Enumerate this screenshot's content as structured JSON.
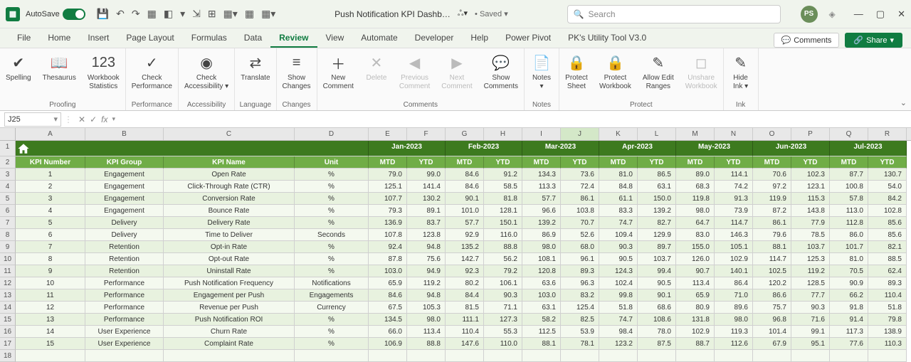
{
  "titlebar": {
    "autosave_label": "AutoSave",
    "doc_title": "Push Notification KPI Dashb…",
    "saved_label": "Saved",
    "search_placeholder": "Search",
    "avatar_initials": "PS"
  },
  "tabs": {
    "items": [
      "File",
      "Home",
      "Insert",
      "Page Layout",
      "Formulas",
      "Data",
      "Review",
      "View",
      "Automate",
      "Developer",
      "Help",
      "Power Pivot",
      "PK's Utility Tool V3.0"
    ],
    "active_index": 6,
    "comments_label": "Comments",
    "share_label": "Share"
  },
  "ribbon": {
    "groups": [
      {
        "name": "Proofing",
        "items": [
          {
            "icon": "✔",
            "label": "Spelling"
          },
          {
            "icon": "📖",
            "label": "Thesaurus"
          },
          {
            "icon": "123",
            "label": "Workbook\nStatistics"
          }
        ]
      },
      {
        "name": "Performance",
        "items": [
          {
            "icon": "✓",
            "label": "Check\nPerformance"
          }
        ]
      },
      {
        "name": "Accessibility",
        "items": [
          {
            "icon": "◉",
            "label": "Check\nAccessibility ▾"
          }
        ]
      },
      {
        "name": "Language",
        "items": [
          {
            "icon": "⇄",
            "label": "Translate"
          }
        ]
      },
      {
        "name": "Changes",
        "items": [
          {
            "icon": "≡",
            "label": "Show\nChanges"
          }
        ]
      },
      {
        "name": "Comments",
        "items": [
          {
            "icon": "＋",
            "label": "New\nComment"
          },
          {
            "icon": "✕",
            "label": "Delete",
            "disabled": true
          },
          {
            "icon": "◀",
            "label": "Previous\nComment",
            "disabled": true
          },
          {
            "icon": "▶",
            "label": "Next\nComment",
            "disabled": true
          },
          {
            "icon": "💬",
            "label": "Show\nComments"
          }
        ]
      },
      {
        "name": "Notes",
        "items": [
          {
            "icon": "📄",
            "label": "Notes\n▾"
          }
        ]
      },
      {
        "name": "Protect",
        "items": [
          {
            "icon": "🔒",
            "label": "Protect\nSheet"
          },
          {
            "icon": "🔒",
            "label": "Protect\nWorkbook"
          },
          {
            "icon": "✎",
            "label": "Allow Edit\nRanges"
          },
          {
            "icon": "◻",
            "label": "Unshare\nWorkbook",
            "disabled": true
          }
        ]
      },
      {
        "name": "Ink",
        "items": [
          {
            "icon": "✎",
            "label": "Hide\nInk ▾"
          }
        ]
      }
    ]
  },
  "formula_bar": {
    "namebox": "J25",
    "formula": ""
  },
  "columns": [
    "A",
    "B",
    "C",
    "D",
    "E",
    "F",
    "G",
    "H",
    "I",
    "J",
    "K",
    "L",
    "M",
    "N",
    "O",
    "P",
    "Q",
    "R"
  ],
  "active_col_index": 9,
  "months": [
    "Jan-2023",
    "Feb-2023",
    "Mar-2023",
    "Apr-2023",
    "May-2023",
    "Jun-2023",
    "Jul-2023"
  ],
  "header_row": {
    "kpi_number": "KPI Number",
    "kpi_group": "KPI Group",
    "kpi_name": "KPI Name",
    "unit": "Unit",
    "mtd": "MTD",
    "ytd": "YTD"
  },
  "kpi_data": [
    {
      "num": 1,
      "group": "Engagement",
      "name": "Open Rate",
      "unit": "%",
      "vals": [
        79.0,
        99.0,
        84.6,
        91.2,
        134.3,
        73.6,
        81.0,
        86.5,
        89.0,
        114.1,
        70.6,
        102.3,
        87.7,
        130.7
      ]
    },
    {
      "num": 2,
      "group": "Engagement",
      "name": "Click-Through Rate (CTR)",
      "unit": "%",
      "vals": [
        125.1,
        141.4,
        84.6,
        58.5,
        113.3,
        72.4,
        84.8,
        63.1,
        68.3,
        74.2,
        97.2,
        123.1,
        100.8,
        54.0
      ]
    },
    {
      "num": 3,
      "group": "Engagement",
      "name": "Conversion Rate",
      "unit": "%",
      "vals": [
        107.7,
        130.2,
        90.1,
        81.8,
        57.7,
        86.1,
        61.1,
        150.0,
        119.8,
        91.3,
        119.9,
        115.3,
        57.8,
        84.2
      ]
    },
    {
      "num": 4,
      "group": "Engagement",
      "name": "Bounce Rate",
      "unit": "%",
      "vals": [
        79.3,
        89.1,
        101.0,
        128.1,
        96.6,
        103.8,
        83.3,
        139.2,
        98.0,
        73.9,
        87.2,
        143.8,
        113.0,
        102.8
      ]
    },
    {
      "num": 5,
      "group": "Delivery",
      "name": "Delivery Rate",
      "unit": "%",
      "vals": [
        136.9,
        83.7,
        57.7,
        150.1,
        139.2,
        70.7,
        74.7,
        82.7,
        64.7,
        114.7,
        86.1,
        77.9,
        112.8,
        85.6
      ]
    },
    {
      "num": 6,
      "group": "Delivery",
      "name": "Time to Deliver",
      "unit": "Seconds",
      "vals": [
        107.8,
        123.8,
        92.9,
        116.0,
        86.9,
        52.6,
        109.4,
        129.9,
        83.0,
        146.3,
        79.6,
        78.5,
        86.0,
        85.6
      ]
    },
    {
      "num": 7,
      "group": "Retention",
      "name": "Opt-in Rate",
      "unit": "%",
      "vals": [
        92.4,
        94.8,
        135.2,
        88.8,
        98.0,
        68.0,
        90.3,
        89.7,
        155.0,
        105.1,
        88.1,
        103.7,
        101.7,
        82.1
      ]
    },
    {
      "num": 8,
      "group": "Retention",
      "name": "Opt-out Rate",
      "unit": "%",
      "vals": [
        87.8,
        75.6,
        142.7,
        56.2,
        108.1,
        96.1,
        90.5,
        103.7,
        126.0,
        102.9,
        114.7,
        125.3,
        81.0,
        88.5
      ]
    },
    {
      "num": 9,
      "group": "Retention",
      "name": "Uninstall Rate",
      "unit": "%",
      "vals": [
        103.0,
        94.9,
        92.3,
        79.2,
        120.8,
        89.3,
        124.3,
        99.4,
        90.7,
        140.1,
        102.5,
        119.2,
        70.5,
        62.4
      ]
    },
    {
      "num": 10,
      "group": "Performance",
      "name": "Push Notification Frequency",
      "unit": "Notifications",
      "vals": [
        65.9,
        119.2,
        80.2,
        106.1,
        63.6,
        96.3,
        102.4,
        90.5,
        113.4,
        86.4,
        120.2,
        128.5,
        90.9,
        89.3
      ]
    },
    {
      "num": 11,
      "group": "Performance",
      "name": "Engagement per Push",
      "unit": "Engagements",
      "vals": [
        84.6,
        94.8,
        84.4,
        90.3,
        103.0,
        83.2,
        99.8,
        90.1,
        65.9,
        71.0,
        86.6,
        77.7,
        66.2,
        110.4
      ]
    },
    {
      "num": 12,
      "group": "Performance",
      "name": "Revenue per Push",
      "unit": "Currency",
      "vals": [
        67.5,
        105.3,
        81.5,
        71.1,
        63.1,
        125.4,
        51.8,
        68.6,
        80.9,
        89.6,
        75.7,
        90.3,
        91.8,
        51.8
      ]
    },
    {
      "num": 13,
      "group": "Performance",
      "name": "Push Notification ROI",
      "unit": "%",
      "vals": [
        134.5,
        98.0,
        111.1,
        127.3,
        58.2,
        82.5,
        74.7,
        108.6,
        131.8,
        98.0,
        96.8,
        71.6,
        91.4,
        79.8
      ]
    },
    {
      "num": 14,
      "group": "User Experience",
      "name": "Churn Rate",
      "unit": "%",
      "vals": [
        66.0,
        113.4,
        110.4,
        55.3,
        112.5,
        53.9,
        98.4,
        78.0,
        102.9,
        119.3,
        101.4,
        99.1,
        117.3,
        138.9
      ]
    },
    {
      "num": 15,
      "group": "User Experience",
      "name": "Complaint Rate",
      "unit": "%",
      "vals": [
        106.9,
        88.8,
        147.6,
        110.0,
        88.1,
        78.1,
        123.2,
        87.5,
        88.7,
        112.6,
        67.9,
        95.1,
        77.6,
        110.3
      ]
    }
  ],
  "colors": {
    "dark_green": "#3d7a1f",
    "mid_green": "#70ad47",
    "light_even": "#e8f2df",
    "light_odd": "#f4f9ef"
  }
}
